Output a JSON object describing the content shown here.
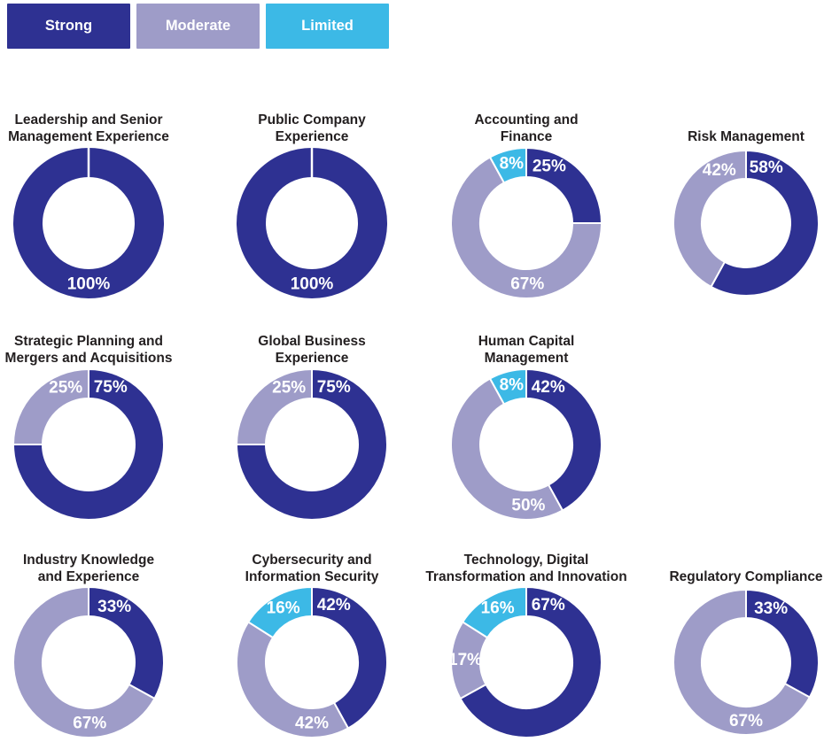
{
  "legend": {
    "items": [
      {
        "label": "Strong",
        "color": "#2e3192",
        "text_color": "#ffffff"
      },
      {
        "label": "Moderate",
        "color": "#9e9cc8",
        "text_color": "#ffffff"
      },
      {
        "label": "Limited",
        "color": "#3cb9e6",
        "text_color": "#ffffff"
      }
    ]
  },
  "colors": {
    "strong": "#2e3192",
    "moderate": "#9e9cc8",
    "limited": "#3cb9e6",
    "title_text": "#231f20",
    "slice_label_text": "#ffffff",
    "separator": "#ffffff",
    "background": "#ffffff"
  },
  "chart_data": [
    {
      "type": "pie",
      "donut": true,
      "col": 0,
      "row": 0,
      "title": "Leadership and Senior Management Experience",
      "title_lines": [
        "Leadership and Senior",
        "Management Experience"
      ],
      "slices": [
        {
          "name": "Strong",
          "value": 100,
          "label": "100%",
          "label_angle": 180
        }
      ]
    },
    {
      "type": "pie",
      "donut": true,
      "col": 1,
      "row": 0,
      "title": "Public Company Experience",
      "title_lines": [
        "Public Company",
        "Experience"
      ],
      "slices": [
        {
          "name": "Strong",
          "value": 100,
          "label": "100%",
          "label_angle": 180
        }
      ]
    },
    {
      "type": "pie",
      "donut": true,
      "col": 2,
      "row": 0,
      "title": "Accounting and Finance",
      "title_lines": [
        "Accounting and",
        "Finance"
      ],
      "slices": [
        {
          "name": "Strong",
          "value": 25,
          "label": "25%",
          "label_angle": 22
        },
        {
          "name": "Moderate",
          "value": 67,
          "label": "67%",
          "label_angle": 179
        },
        {
          "name": "Limited",
          "value": 8,
          "label": "8%",
          "label_angle": 346
        }
      ]
    },
    {
      "type": "pie",
      "donut": true,
      "col": 3,
      "row": 0,
      "title": "Risk Management",
      "title_lines": [
        "Risk Management"
      ],
      "slices": [
        {
          "name": "Strong",
          "value": 58,
          "label": "58%",
          "label_angle": 20
        },
        {
          "name": "Moderate",
          "value": 42,
          "label": "42%",
          "label_angle": 333
        }
      ]
    },
    {
      "type": "pie",
      "donut": true,
      "col": 0,
      "row": 1,
      "title": "Strategic Planning and Mergers and Acquisitions",
      "title_lines": [
        "Strategic Planning and",
        "Mergers and Acquisitions"
      ],
      "slices": [
        {
          "name": "Strong",
          "value": 75,
          "label": "75%",
          "label_angle": 21
        },
        {
          "name": "Moderate",
          "value": 25,
          "label": "25%",
          "label_angle": 338
        }
      ]
    },
    {
      "type": "pie",
      "donut": true,
      "col": 1,
      "row": 1,
      "title": "Global Business Experience",
      "title_lines": [
        "Global Business",
        "Experience"
      ],
      "slices": [
        {
          "name": "Strong",
          "value": 75,
          "label": "75%",
          "label_angle": 21
        },
        {
          "name": "Moderate",
          "value": 25,
          "label": "25%",
          "label_angle": 338
        }
      ]
    },
    {
      "type": "pie",
      "donut": true,
      "col": 2,
      "row": 1,
      "title": "Human Capital Management",
      "title_lines": [
        "Human Capital",
        "Management"
      ],
      "slices": [
        {
          "name": "Strong",
          "value": 42,
          "label": "42%",
          "label_angle": 21
        },
        {
          "name": "Moderate",
          "value": 50,
          "label": "50%",
          "label_angle": 178
        },
        {
          "name": "Limited",
          "value": 8,
          "label": "8%",
          "label_angle": 346
        }
      ]
    },
    {
      "type": "pie",
      "donut": true,
      "col": 0,
      "row": 2,
      "title": "Industry Knowledge and Experience",
      "title_lines": [
        "Industry Knowledge",
        "and Experience"
      ],
      "slices": [
        {
          "name": "Strong",
          "value": 33,
          "label": "33%",
          "label_angle": 25
        },
        {
          "name": "Moderate",
          "value": 67,
          "label": "67%",
          "label_angle": 179
        }
      ]
    },
    {
      "type": "pie",
      "donut": true,
      "col": 1,
      "row": 2,
      "title": "Cybersecurity and Information Security",
      "title_lines": [
        "Cybersecurity and",
        "Information Security"
      ],
      "slices": [
        {
          "name": "Strong",
          "value": 42,
          "label": "42%",
          "label_angle": 21
        },
        {
          "name": "Moderate",
          "value": 42,
          "label": "42%",
          "label_angle": 180
        },
        {
          "name": "Limited",
          "value": 16,
          "label": "16%",
          "label_angle": 332
        }
      ]
    },
    {
      "type": "pie",
      "donut": true,
      "col": 2,
      "row": 2,
      "title": "Technology, Digital Transformation and Innovation",
      "title_lines": [
        "Technology, Digital",
        "Transformation and Innovation"
      ],
      "slices": [
        {
          "name": "Strong",
          "value": 67,
          "label": "67%",
          "label_angle": 21
        },
        {
          "name": "Moderate",
          "value": 17,
          "label": "17%",
          "label_angle": 272
        },
        {
          "name": "Limited",
          "value": 16,
          "label": "16%",
          "label_angle": 332
        }
      ]
    },
    {
      "type": "pie",
      "donut": true,
      "col": 3,
      "row": 2,
      "title": "Regulatory Compliance",
      "title_lines": [
        "Regulatory Compliance"
      ],
      "slices": [
        {
          "name": "Strong",
          "value": 33,
          "label": "33%",
          "label_angle": 25
        },
        {
          "name": "Moderate",
          "value": 67,
          "label": "67%",
          "label_angle": 180
        }
      ]
    }
  ]
}
